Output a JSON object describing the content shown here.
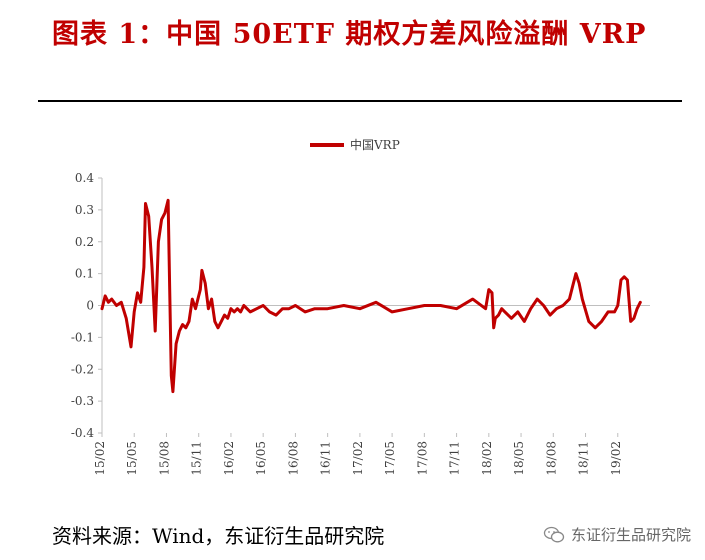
{
  "header": {
    "title": "图表 1：中国 50ETF 期权方差风险溢酬 VRP"
  },
  "footer": {
    "source": "资料来源：Wind，东证衍生品研究院"
  },
  "watermark": {
    "text": "东证衍生品研究院",
    "icon": "wechat-icon"
  },
  "chart_data": {
    "type": "line",
    "title": "",
    "xlabel": "",
    "ylabel": "",
    "ylim": [
      -0.4,
      0.4
    ],
    "yticks": [
      0.4,
      0.3,
      0.2,
      0.1,
      0,
      -0.1,
      -0.2,
      -0.3,
      -0.4
    ],
    "ytick_labels": [
      "0.4",
      "0.3",
      "0.2",
      "0.1",
      "0",
      "-0.1",
      "-0.2",
      "-0.3",
      "-0.4"
    ],
    "xtick_labels": [
      "15/02",
      "15/05",
      "15/08",
      "15/11",
      "16/02",
      "16/05",
      "16/08",
      "16/11",
      "17/02",
      "17/05",
      "17/08",
      "17/11",
      "18/02",
      "18/05",
      "18/08",
      "18/11",
      "19/02"
    ],
    "grid": false,
    "legend": "top-center",
    "series": [
      {
        "name": "中国VRP",
        "color": "#c00000",
        "x": [
          0,
          0.1,
          0.2,
          0.3,
          0.45,
          0.6,
          0.75,
          0.9,
          1.0,
          1.1,
          1.2,
          1.3,
          1.35,
          1.45,
          1.55,
          1.65,
          1.75,
          1.85,
          1.95,
          2.05,
          2.1,
          2.15,
          2.2,
          2.3,
          2.4,
          2.5,
          2.6,
          2.7,
          2.8,
          2.9,
          3.0,
          3.05,
          3.1,
          3.2,
          3.3,
          3.4,
          3.5,
          3.6,
          3.7,
          3.8,
          3.9,
          4.0,
          4.1,
          4.2,
          4.3,
          4.4,
          4.6,
          4.8,
          5.0,
          5.2,
          5.4,
          5.6,
          5.8,
          6.0,
          6.3,
          6.6,
          7.0,
          7.5,
          8.0,
          8.5,
          9.0,
          9.5,
          10.0,
          10.5,
          11.0,
          11.5,
          11.9,
          12.0,
          12.1,
          12.15,
          12.2,
          12.3,
          12.4,
          12.5,
          12.7,
          12.9,
          13.1,
          13.3,
          13.5,
          13.7,
          13.9,
          14.1,
          14.3,
          14.5,
          14.6,
          14.7,
          14.8,
          14.9,
          15.1,
          15.3,
          15.5,
          15.7,
          15.9,
          16.0,
          16.1,
          16.2,
          16.3,
          16.4,
          16.5,
          16.6,
          16.7
        ],
        "values": [
          -0.01,
          0.03,
          0.01,
          0.02,
          0.0,
          0.01,
          -0.04,
          -0.13,
          -0.02,
          0.04,
          0.01,
          0.12,
          0.32,
          0.28,
          0.12,
          -0.08,
          0.2,
          0.27,
          0.29,
          0.33,
          0.05,
          -0.22,
          -0.27,
          -0.12,
          -0.08,
          -0.06,
          -0.07,
          -0.05,
          0.02,
          -0.01,
          0.03,
          0.05,
          0.11,
          0.07,
          -0.01,
          0.02,
          -0.05,
          -0.07,
          -0.05,
          -0.03,
          -0.04,
          -0.01,
          -0.02,
          -0.01,
          -0.02,
          0.0,
          -0.02,
          -0.01,
          0.0,
          -0.02,
          -0.03,
          -0.01,
          -0.01,
          0.0,
          -0.02,
          -0.01,
          -0.01,
          0.0,
          -0.01,
          0.01,
          -0.02,
          -0.01,
          0.0,
          0.0,
          -0.01,
          0.02,
          -0.01,
          0.05,
          0.04,
          -0.07,
          -0.04,
          -0.03,
          -0.01,
          -0.02,
          -0.04,
          -0.02,
          -0.05,
          -0.01,
          0.02,
          0.0,
          -0.03,
          -0.01,
          0.0,
          0.02,
          0.06,
          0.1,
          0.07,
          0.02,
          -0.05,
          -0.07,
          -0.05,
          -0.02,
          -0.02,
          0.0,
          0.08,
          0.09,
          0.08,
          -0.05,
          -0.04,
          -0.01,
          0.01
        ]
      }
    ]
  }
}
